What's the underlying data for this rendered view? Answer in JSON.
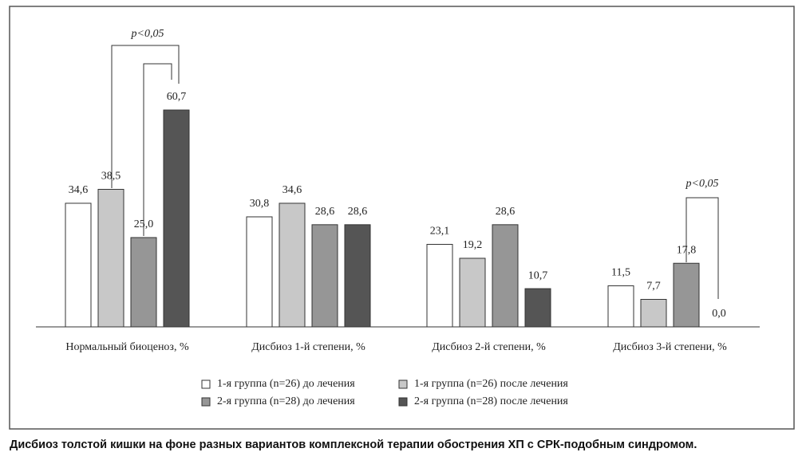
{
  "chart_data": {
    "type": "bar",
    "caption": "Дисбиоз толстой кишки на фоне разных вариантов комплексной терапии обострения ХП с СРК-подобным синдромом.",
    "categories": [
      "Нормальный биоценоз, %",
      "Дисбиоз 1-й степени, %",
      "Дисбиоз 2-й степени, %",
      "Дисбиоз 3-й степени, %"
    ],
    "series": [
      {
        "name": "1-я группа (n=26) до лечения",
        "color": "#ffffff",
        "values": [
          34.6,
          30.8,
          23.1,
          11.5
        ],
        "value_labels": [
          "34,6",
          "30,8",
          "23,1",
          "11,5"
        ]
      },
      {
        "name": "1-я группа (n=26) после лечения",
        "color": "#c8c8c8",
        "values": [
          38.5,
          34.6,
          19.2,
          7.7
        ],
        "value_labels": [
          "38,5",
          "34,6",
          "19,2",
          "7,7"
        ]
      },
      {
        "name": "2-я группа (n=28) до лечения",
        "color": "#969696",
        "values": [
          25.0,
          28.6,
          28.6,
          17.8
        ],
        "value_labels": [
          "25,0",
          "28,6",
          "28,6",
          "17,8"
        ]
      },
      {
        "name": "2-я группа (n=28) после лечения",
        "color": "#555555",
        "values": [
          60.7,
          28.6,
          10.7,
          0.0
        ],
        "value_labels": [
          "60,7",
          "28,6",
          "10,7",
          "0,0"
        ]
      }
    ],
    "annotations": [
      {
        "text": "p<0,05"
      },
      {
        "text": "p<0,05"
      }
    ]
  }
}
